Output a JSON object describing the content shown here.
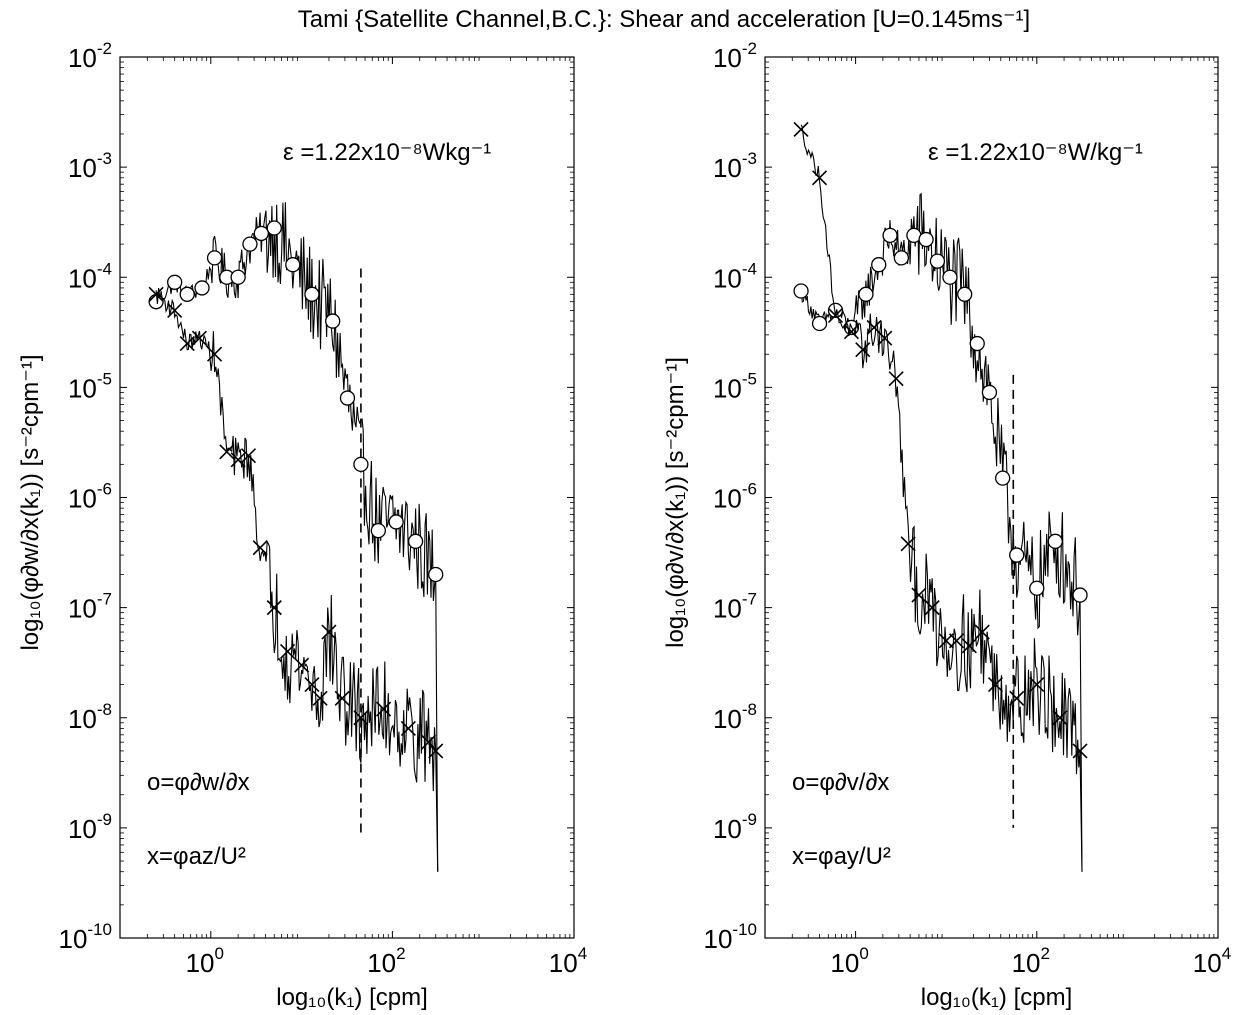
{
  "figure": {
    "title": "Tami {Satellite Channel,B.C.}: Shear and acceleration [U=0.145ms⁻¹]"
  },
  "chart_data": [
    {
      "type": "line",
      "panel": "left",
      "x_scale": "log",
      "y_scale": "log",
      "xlim": [
        0.1,
        10000
      ],
      "ylim": [
        1e-10,
        0.01
      ],
      "x_ticks": [
        1,
        100,
        10000
      ],
      "x_tick_labels": [
        [
          "10",
          "0"
        ],
        [
          "10",
          "2"
        ],
        [
          "10",
          "4"
        ]
      ],
      "y_ticks": [
        0.01,
        0.001,
        0.0001,
        1e-05,
        1e-06,
        1e-07,
        1e-08,
        1e-09,
        1e-10
      ],
      "y_tick_labels": [
        [
          "10",
          "-2"
        ],
        [
          "10",
          "-3"
        ],
        [
          "10",
          "-4"
        ],
        [
          "10",
          "-5"
        ],
        [
          "10",
          "-6"
        ],
        [
          "10",
          "-7"
        ],
        [
          "10",
          "-8"
        ],
        [
          "10",
          "-9"
        ],
        [
          "10",
          "-10"
        ]
      ],
      "xlabel": "log₁₀(k₁) [cpm]",
      "ylabel": "log₁₀(φ∂w/∂x(k₁))  [s⁻²cpm⁻¹]",
      "annotation_epsilon": "ε =1.22x10⁻⁸Wkg⁻¹",
      "legend_shear": "o=φ∂w/∂x",
      "legend_accel": "x=φaz/U²",
      "dashed_line_x": 45,
      "dashed_line_y": [
        9e-10,
        0.00012
      ],
      "series": [
        {
          "marker": "o",
          "x": [
            0.25,
            0.4,
            0.55,
            0.8,
            1.1,
            1.5,
            2.0,
            2.7,
            3.6,
            5.0,
            8.0,
            13,
            22,
            32,
            45,
            70,
            110,
            180,
            300
          ],
          "y": [
            6e-05,
            9e-05,
            7e-05,
            8e-05,
            0.00015,
            0.0001,
            0.0001,
            0.0002,
            0.00025,
            0.00028,
            0.00013,
            7e-05,
            4e-05,
            8e-06,
            2e-06,
            5e-07,
            6e-07,
            4e-07,
            2e-07
          ]
        },
        {
          "marker": "x",
          "x": [
            0.25,
            0.4,
            0.55,
            0.75,
            1.1,
            1.5,
            2.0,
            2.6,
            3.5,
            5.0,
            7.0,
            10,
            13,
            16,
            20,
            28,
            45,
            80,
            150,
            250,
            300
          ],
          "y": [
            7e-05,
            5e-05,
            2.5e-05,
            2.8e-05,
            2e-05,
            2.6e-06,
            2.2e-06,
            2.4e-06,
            3.5e-07,
            1e-07,
            4e-08,
            3e-08,
            2e-08,
            1.5e-08,
            6e-08,
            1.5e-08,
            1e-08,
            1.2e-08,
            8e-09,
            6e-09,
            5e-09
          ]
        }
      ]
    },
    {
      "type": "line",
      "panel": "right",
      "x_scale": "log",
      "y_scale": "log",
      "xlim": [
        0.1,
        10000
      ],
      "ylim": [
        1e-10,
        0.01
      ],
      "x_ticks": [
        1,
        100,
        10000
      ],
      "x_tick_labels": [
        [
          "10",
          "0"
        ],
        [
          "10",
          "2"
        ],
        [
          "10",
          "4"
        ]
      ],
      "y_ticks": [
        0.01,
        0.001,
        0.0001,
        1e-05,
        1e-06,
        1e-07,
        1e-08,
        1e-09,
        1e-10
      ],
      "y_tick_labels": [
        [
          "10",
          "-2"
        ],
        [
          "10",
          "-3"
        ],
        [
          "10",
          "-4"
        ],
        [
          "10",
          "-5"
        ],
        [
          "10",
          "-6"
        ],
        [
          "10",
          "-7"
        ],
        [
          "10",
          "-8"
        ],
        [
          "10",
          "-9"
        ],
        [
          "10",
          "-10"
        ]
      ],
      "xlabel": "log₁₀(k₁)  [cpm]",
      "ylabel": "log₁₀(φ∂v/∂x(k₁))  [s⁻²cpm⁻¹]",
      "annotation_epsilon": "ε =1.22x10⁻⁸W/kg⁻¹",
      "legend_shear": "o=φ∂v/∂x",
      "legend_accel": "x=φay/U²",
      "dashed_line_x": 55,
      "dashed_line_y": [
        1e-09,
        1.3e-05
      ],
      "series": [
        {
          "marker": "o",
          "x": [
            0.25,
            0.4,
            0.6,
            0.9,
            1.3,
            1.8,
            2.4,
            3.2,
            4.4,
            6.0,
            8.0,
            11,
            16,
            22,
            30,
            42,
            60,
            100,
            160,
            300
          ],
          "y": [
            7.5e-05,
            3.8e-05,
            5e-05,
            3.5e-05,
            7e-05,
            0.00013,
            0.00024,
            0.00015,
            0.00024,
            0.00022,
            0.00014,
            0.0001,
            7e-05,
            2.5e-05,
            9e-06,
            1.5e-06,
            3e-07,
            1.5e-07,
            4e-07,
            1.3e-07
          ]
        },
        {
          "marker": "x",
          "x": [
            0.25,
            0.4,
            0.6,
            0.9,
            1.2,
            1.6,
            2.1,
            2.8,
            3.8,
            5.0,
            7.0,
            10,
            13,
            18,
            25,
            35,
            60,
            100,
            180,
            300
          ],
          "y": [
            0.0022,
            0.0008,
            4.5e-05,
            3.2e-05,
            2.2e-05,
            3.5e-05,
            2.8e-05,
            1.2e-05,
            3.8e-07,
            1.3e-07,
            1e-07,
            5e-08,
            5e-08,
            4.5e-08,
            6e-08,
            2e-08,
            1.5e-08,
            2e-08,
            1e-08,
            5e-09
          ]
        }
      ]
    }
  ]
}
